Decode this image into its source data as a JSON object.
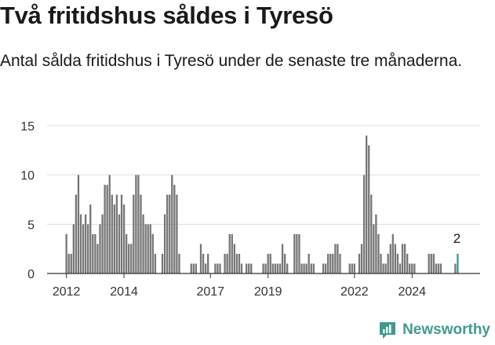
{
  "title": "Två fritidshus såldes i Tyresö",
  "subtitle": "Antal sålda fritidshus i Tyresö under de senaste tre månaderna.",
  "brand": {
    "name": "Newsworthy",
    "logo_icon": "newsworthy-chart-icon",
    "color": "#3f9c8e"
  },
  "colors": {
    "bar": "#767676",
    "highlight": "#2e9c94",
    "grid": "#dddddd",
    "axis": "#333333"
  },
  "chart_data": {
    "type": "bar",
    "title": "Två fritidshus såldes i Tyresö",
    "subtitle": "Antal sålda fritidshus i Tyresö under de senaste tre månaderna.",
    "xlabel": "",
    "ylabel": "",
    "ylim": [
      0,
      15
    ],
    "yticks": [
      0,
      5,
      10,
      15
    ],
    "xticks": [
      "2012",
      "2014",
      "2017",
      "2019",
      "2022",
      "2024"
    ],
    "x_start": "2012-01",
    "interval": "month",
    "grid": true,
    "legend": "none",
    "highlight_last": true,
    "last_value_label": "2",
    "values": [
      4,
      2,
      2,
      5,
      8,
      10,
      6,
      5,
      6,
      5,
      7,
      4,
      4,
      3,
      5,
      6,
      9,
      9,
      10,
      8,
      7,
      8,
      6,
      8,
      7,
      4,
      3,
      3,
      8,
      10,
      10,
      8,
      6,
      5,
      5,
      5,
      4,
      2,
      0,
      0,
      2,
      6,
      8,
      8,
      10,
      9,
      8,
      2,
      0,
      0,
      0,
      0,
      1,
      1,
      1,
      0,
      3,
      2,
      1,
      2,
      0,
      0,
      1,
      1,
      1,
      0,
      2,
      2,
      4,
      4,
      3,
      2,
      2,
      1,
      0,
      1,
      1,
      1,
      0,
      0,
      0,
      0,
      1,
      1,
      2,
      2,
      1,
      1,
      1,
      1,
      3,
      2,
      1,
      0,
      0,
      4,
      4,
      4,
      1,
      1,
      1,
      2,
      1,
      1,
      0,
      0,
      0,
      1,
      1,
      2,
      2,
      2,
      3,
      3,
      2,
      0,
      0,
      0,
      1,
      1,
      1,
      0,
      2,
      3,
      10,
      14,
      13,
      8,
      5,
      6,
      4,
      2,
      1,
      1,
      2,
      3,
      4,
      3,
      2,
      1,
      3,
      3,
      2,
      1,
      1,
      1,
      0,
      0,
      0,
      0,
      0,
      2,
      2,
      2,
      1,
      1,
      1,
      0,
      0,
      0,
      0,
      0,
      1,
      2
    ]
  }
}
